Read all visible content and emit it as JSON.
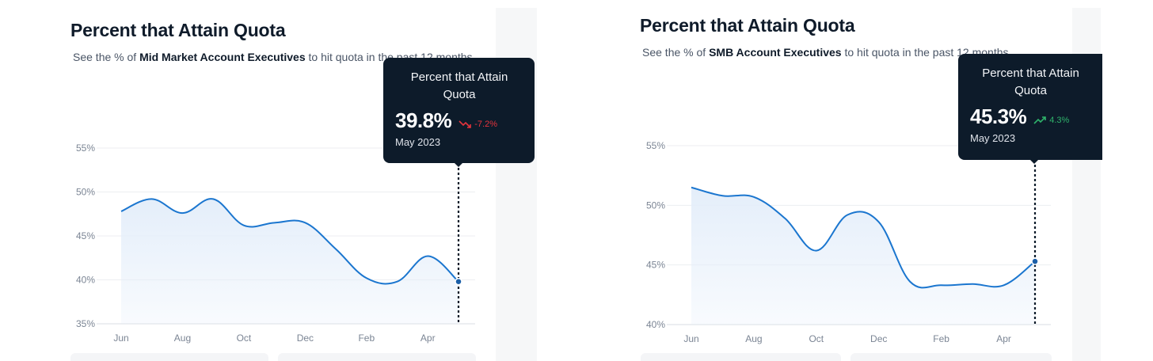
{
  "colors": {
    "line": "#1b76cf",
    "area_top": "#e4eefa",
    "grid": "#eceef1",
    "tooltip_bg": "#0d1b2a",
    "negative": "#e5343d",
    "positive": "#2fb36b"
  },
  "panels": [
    {
      "title": "Percent that Attain Quota",
      "subtitle_prefix": "See the % of ",
      "subtitle_bold": "Mid Market Account Executives",
      "subtitle_suffix": " to hit quota in the past 12 months",
      "tooltip": {
        "title": "Percent that Attain Quota",
        "value": "39.8%",
        "change": "-7.2%",
        "trend": "down",
        "date": "May 2023"
      }
    },
    {
      "title": "Percent that Attain Quota",
      "subtitle_prefix": "See the % of ",
      "subtitle_bold": "SMB Account Executives",
      "subtitle_suffix": " to hit quota in the past 12 months",
      "tooltip": {
        "title": "Percent that Attain Quota",
        "value": "45.3%",
        "change": "4.3%",
        "trend": "up",
        "date": "May 2023"
      }
    }
  ],
  "chart_data": [
    {
      "type": "area",
      "title": "Percent that Attain Quota",
      "xlabel": "",
      "ylabel": "",
      "x": [
        "Jun",
        "Jul",
        "Aug",
        "Sep",
        "Oct",
        "Nov",
        "Dec",
        "Jan",
        "Feb",
        "Mar",
        "Apr",
        "May"
      ],
      "x_tick_labels": [
        "Jun",
        "Aug",
        "Oct",
        "Dec",
        "Feb",
        "Apr"
      ],
      "y": [
        47.8,
        49.2,
        47.6,
        49.2,
        46.2,
        46.5,
        46.5,
        43.5,
        40.2,
        39.8,
        42.7,
        39.8
      ],
      "ylim": [
        35,
        55
      ],
      "y_ticks": [
        35,
        40,
        45,
        50,
        55
      ],
      "y_tick_labels": [
        "35%",
        "40%",
        "45%",
        "50%",
        "55%"
      ],
      "highlight": {
        "x": "May",
        "y": 39.8
      },
      "grid": true
    },
    {
      "type": "area",
      "title": "Percent that Attain Quota",
      "xlabel": "",
      "ylabel": "",
      "x": [
        "Jun",
        "Jul",
        "Aug",
        "Sep",
        "Oct",
        "Nov",
        "Dec",
        "Jan",
        "Feb",
        "Mar",
        "Apr",
        "May"
      ],
      "x_tick_labels": [
        "Jun",
        "Aug",
        "Oct",
        "Dec",
        "Feb",
        "Apr"
      ],
      "y": [
        51.5,
        50.8,
        50.7,
        48.9,
        46.2,
        49.2,
        48.6,
        43.6,
        43.3,
        43.4,
        43.3,
        45.3
      ],
      "ylim": [
        40,
        55
      ],
      "y_ticks": [
        40,
        45,
        50,
        55
      ],
      "y_tick_labels": [
        "40%",
        "45%",
        "50%",
        "55%"
      ],
      "highlight": {
        "x": "May",
        "y": 45.3
      },
      "grid": true
    }
  ]
}
